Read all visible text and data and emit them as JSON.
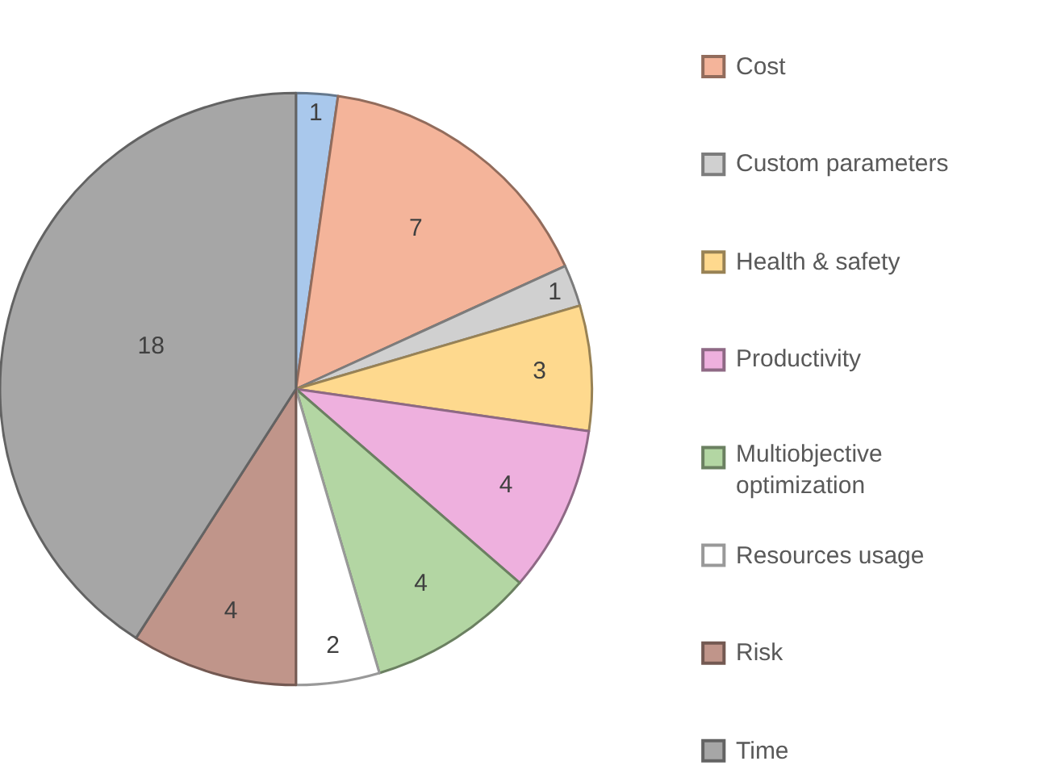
{
  "chart_data": {
    "type": "pie",
    "categories": [
      null,
      "Cost",
      "Custom parameters",
      "Health & safety",
      "Productivity",
      "Multiobjective optimization",
      "Resources usage",
      "Risk",
      "Time"
    ],
    "values": [
      1,
      7,
      1,
      3,
      4,
      4,
      2,
      4,
      18
    ],
    "colors": [
      "#a9c8ec",
      "#f4b49a",
      "#d0d0d0",
      "#fed98e",
      "#eeb0de",
      "#b3d6a3",
      "#ffffff",
      "#c0958a",
      "#a6a6a6"
    ],
    "data_labels": true,
    "legend": "right"
  }
}
